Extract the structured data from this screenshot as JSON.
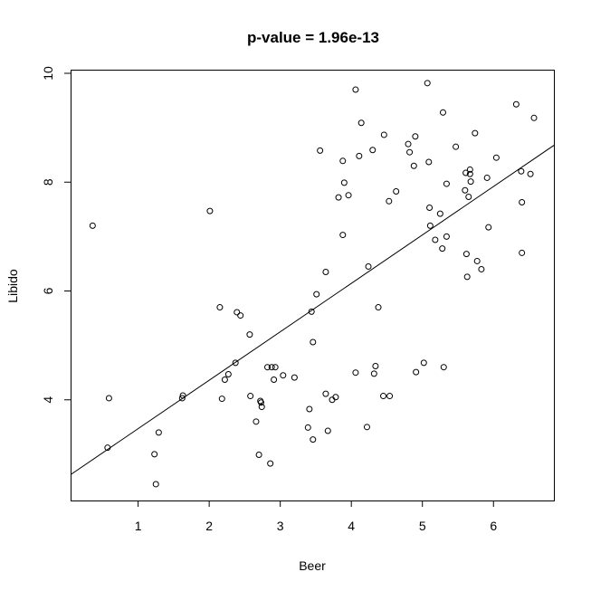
{
  "chart_data": {
    "type": "scatter",
    "title": "p-value = 1.96e-13",
    "xlabel": "Beer",
    "ylabel": "Libido",
    "xlim": [
      0.05,
      6.85
    ],
    "ylim": [
      2.15,
      10.05
    ],
    "xticks": [
      1,
      2,
      3,
      4,
      5,
      6
    ],
    "yticks": [
      4,
      6,
      8,
      10
    ],
    "grid": false,
    "regression_line": {
      "intercept": 2.58,
      "slope": 0.89
    },
    "points": [
      [
        0.36,
        7.2
      ],
      [
        0.57,
        3.12
      ],
      [
        0.59,
        4.03
      ],
      [
        1.23,
        3.0
      ],
      [
        1.25,
        2.45
      ],
      [
        1.29,
        3.4
      ],
      [
        1.62,
        4.03
      ],
      [
        1.63,
        4.08
      ],
      [
        2.01,
        7.47
      ],
      [
        2.15,
        5.7
      ],
      [
        2.18,
        4.02
      ],
      [
        2.22,
        4.37
      ],
      [
        2.27,
        4.47
      ],
      [
        2.37,
        4.68
      ],
      [
        2.39,
        5.61
      ],
      [
        2.44,
        5.55
      ],
      [
        2.57,
        5.2
      ],
      [
        2.58,
        4.07
      ],
      [
        2.66,
        3.6
      ],
      [
        2.7,
        2.99
      ],
      [
        2.72,
        3.98
      ],
      [
        2.73,
        3.95
      ],
      [
        2.74,
        3.87
      ],
      [
        2.82,
        4.6
      ],
      [
        2.86,
        2.83
      ],
      [
        2.88,
        4.6
      ],
      [
        2.91,
        4.37
      ],
      [
        2.93,
        4.6
      ],
      [
        3.04,
        4.45
      ],
      [
        3.2,
        4.41
      ],
      [
        3.39,
        3.49
      ],
      [
        3.41,
        3.83
      ],
      [
        3.44,
        5.62
      ],
      [
        3.46,
        3.27
      ],
      [
        3.46,
        5.06
      ],
      [
        3.51,
        5.94
      ],
      [
        3.56,
        8.58
      ],
      [
        3.64,
        4.11
      ],
      [
        3.64,
        6.35
      ],
      [
        3.67,
        3.43
      ],
      [
        3.73,
        4.0
      ],
      [
        3.78,
        4.05
      ],
      [
        3.82,
        7.72
      ],
      [
        3.88,
        8.39
      ],
      [
        3.88,
        7.03
      ],
      [
        3.9,
        7.99
      ],
      [
        3.96,
        7.76
      ],
      [
        4.06,
        9.7
      ],
      [
        4.06,
        4.5
      ],
      [
        4.11,
        8.48
      ],
      [
        4.14,
        9.09
      ],
      [
        4.22,
        3.5
      ],
      [
        4.24,
        6.45
      ],
      [
        4.3,
        8.59
      ],
      [
        4.32,
        4.48
      ],
      [
        4.34,
        4.62
      ],
      [
        4.38,
        5.7
      ],
      [
        4.45,
        4.07
      ],
      [
        4.46,
        8.87
      ],
      [
        4.54,
        4.07
      ],
      [
        4.53,
        7.65
      ],
      [
        4.63,
        7.83
      ],
      [
        4.8,
        8.7
      ],
      [
        4.82,
        8.55
      ],
      [
        4.88,
        8.3
      ],
      [
        4.9,
        8.84
      ],
      [
        4.91,
        4.51
      ],
      [
        5.02,
        4.68
      ],
      [
        5.07,
        9.82
      ],
      [
        5.09,
        8.37
      ],
      [
        5.1,
        7.53
      ],
      [
        5.11,
        7.2
      ],
      [
        5.18,
        6.94
      ],
      [
        5.25,
        7.42
      ],
      [
        5.28,
        6.78
      ],
      [
        5.29,
        9.28
      ],
      [
        5.3,
        4.6
      ],
      [
        5.34,
        7.0
      ],
      [
        5.34,
        7.97
      ],
      [
        5.47,
        8.65
      ],
      [
        5.6,
        7.85
      ],
      [
        5.61,
        8.17
      ],
      [
        5.62,
        6.68
      ],
      [
        5.63,
        6.26
      ],
      [
        5.65,
        7.73
      ],
      [
        5.67,
        8.23
      ],
      [
        5.67,
        8.15
      ],
      [
        5.68,
        8.01
      ],
      [
        5.74,
        8.9
      ],
      [
        5.77,
        6.55
      ],
      [
        5.83,
        6.4
      ],
      [
        5.91,
        8.08
      ],
      [
        5.93,
        7.17
      ],
      [
        6.04,
        8.45
      ],
      [
        6.32,
        9.43
      ],
      [
        6.39,
        8.2
      ],
      [
        6.4,
        7.63
      ],
      [
        6.4,
        6.7
      ],
      [
        6.52,
        8.15
      ],
      [
        6.57,
        9.18
      ]
    ]
  }
}
